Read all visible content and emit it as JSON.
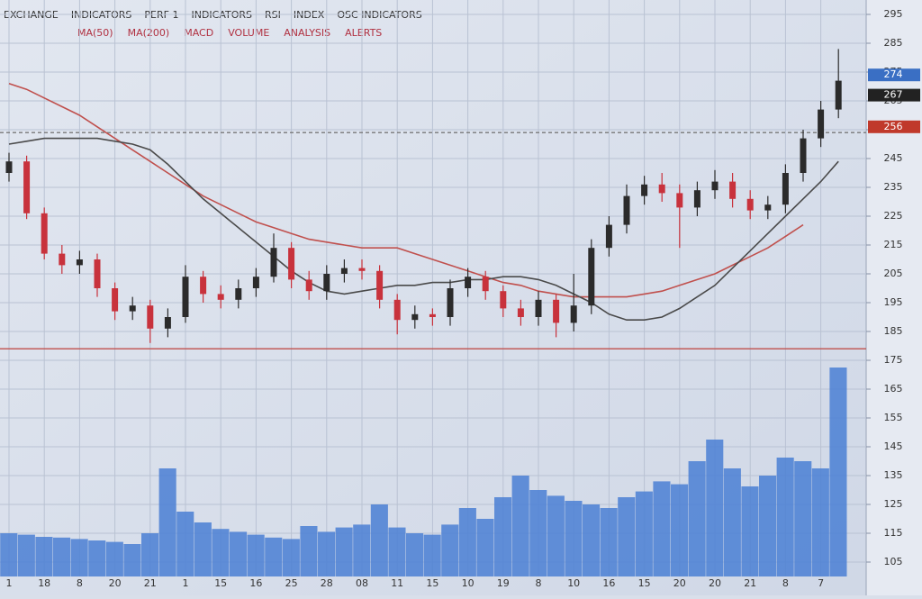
{
  "header": {
    "line1": [
      "EXCHANGE",
      "INDICATORS",
      "PERF 1",
      "INDICATORS",
      "RSI",
      "INDEX",
      "OSC INDICATORS"
    ],
    "line2": [
      "MA(50)",
      "MA(200)",
      "MACD",
      "VOLUME",
      "ANALYSIS",
      "ALERTS"
    ]
  },
  "chart_data": {
    "type": "candlestick",
    "categories": [
      "1",
      null,
      "18",
      null,
      "8",
      null,
      "20",
      null,
      "21",
      null,
      "1",
      null,
      "15",
      null,
      "16",
      null,
      "25",
      null,
      "28",
      null,
      "08",
      null,
      "11",
      null,
      "15",
      null,
      "10",
      null,
      "19",
      null,
      "8",
      null,
      "10",
      null,
      "16",
      null,
      "15",
      null,
      "20",
      null,
      "20",
      null,
      "21",
      null,
      "8",
      null,
      "7",
      null
    ],
    "open": [
      240,
      244,
      226,
      212,
      208,
      210,
      200,
      192,
      194,
      186,
      190,
      204,
      198,
      196,
      200,
      204,
      214,
      203,
      199,
      205,
      207,
      206,
      196,
      189,
      191,
      190,
      200,
      204,
      199,
      193,
      190,
      196,
      188,
      194,
      214,
      222,
      232,
      236,
      233,
      228,
      234,
      237,
      231,
      227,
      229,
      240,
      252,
      262
    ],
    "high": [
      247,
      246,
      228,
      215,
      213,
      212,
      202,
      197,
      196,
      193,
      208,
      206,
      201,
      203,
      207,
      219,
      216,
      206,
      208,
      210,
      210,
      208,
      198,
      194,
      193,
      203,
      207,
      206,
      201,
      196,
      199,
      198,
      205,
      217,
      225,
      236,
      239,
      240,
      236,
      237,
      241,
      240,
      234,
      232,
      243,
      255,
      265,
      283
    ],
    "low": [
      237,
      224,
      210,
      205,
      205,
      197,
      189,
      189,
      181,
      183,
      188,
      195,
      193,
      193,
      197,
      202,
      200,
      196,
      196,
      202,
      203,
      193,
      184,
      186,
      187,
      187,
      197,
      196,
      190,
      187,
      187,
      183,
      185,
      191,
      211,
      219,
      229,
      230,
      214,
      225,
      231,
      228,
      224,
      224,
      226,
      237,
      249,
      259
    ],
    "close": [
      244,
      226,
      212,
      208,
      210,
      200,
      192,
      194,
      186,
      190,
      204,
      198,
      196,
      200,
      204,
      214,
      203,
      199,
      205,
      207,
      206,
      196,
      189,
      191,
      190,
      200,
      204,
      199,
      193,
      190,
      196,
      188,
      194,
      214,
      222,
      232,
      236,
      233,
      228,
      234,
      237,
      231,
      227,
      229,
      240,
      252,
      262,
      272
    ],
    "series": [
      {
        "color": "#c0504d",
        "values": [
          271,
          269,
          266,
          263,
          260,
          256,
          252,
          248,
          244,
          240,
          236,
          232,
          229,
          226,
          223,
          221,
          219,
          217,
          216,
          215,
          214,
          214,
          214,
          212,
          210,
          208,
          206,
          204,
          202,
          201,
          199,
          198,
          197,
          197,
          197,
          197,
          198,
          199,
          201,
          203,
          205,
          208,
          211,
          214,
          218,
          222,
          null,
          null
        ]
      },
      {
        "color": "#4a4a4a",
        "values": [
          250,
          251,
          252,
          252,
          252,
          252,
          251,
          250,
          248,
          243,
          237,
          231,
          226,
          221,
          216,
          211,
          206,
          202,
          199,
          198,
          199,
          200,
          201,
          201,
          202,
          202,
          203,
          203,
          204,
          204,
          203,
          201,
          198,
          195,
          191,
          189,
          189,
          190,
          193,
          197,
          201,
          207,
          213,
          219,
          225,
          231,
          237,
          244
        ]
      }
    ],
    "volume": {
      "color": "#4a7fd4",
      "values": [
        60,
        58,
        55,
        54,
        52,
        50,
        48,
        45,
        60,
        150,
        90,
        75,
        66,
        62,
        58,
        54,
        52,
        70,
        62,
        68,
        72,
        100,
        68,
        60,
        58,
        72,
        95,
        80,
        110,
        140,
        120,
        112,
        105,
        100,
        95,
        110,
        118,
        132,
        128,
        160,
        190,
        150,
        125,
        140,
        165,
        160,
        150,
        290
      ],
      "axis": "y2"
    },
    "up_color": "#2b2b2b",
    "down_color": "#c8323c",
    "ylim": [
      100,
      300
    ],
    "yticks": [
      295,
      285,
      275,
      265,
      255,
      245,
      235,
      225,
      215,
      205,
      195,
      185,
      175,
      165,
      155,
      145,
      135,
      125,
      115,
      105
    ],
    "y2lim": [
      0,
      300
    ],
    "hlines": [
      {
        "value": 179,
        "color": "#c0504d",
        "style": "solid"
      },
      {
        "value": 254,
        "color": "#777777",
        "style": "dashed"
      }
    ],
    "price_tags": [
      {
        "value": 274,
        "color": "#3a6fc4"
      },
      {
        "value": 267,
        "color": "#222222"
      },
      {
        "value": 256,
        "color": "#c0392b"
      }
    ],
    "grid": true
  }
}
